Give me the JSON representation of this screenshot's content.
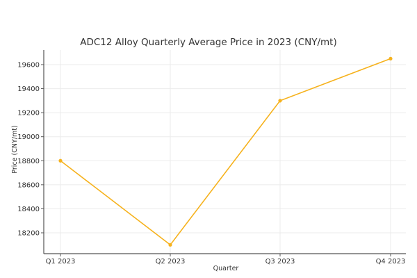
{
  "chart_data": {
    "type": "line",
    "title": "ADC12 Alloy Quarterly Average Price in 2023 (CNY/mt)",
    "xlabel": "Quarter",
    "ylabel": "Price (CNY/mt)",
    "categories": [
      "Q1 2023",
      "Q2 2023",
      "Q3 2023",
      "Q4 2023"
    ],
    "values": [
      18800,
      18100,
      19300,
      19650
    ],
    "series": [
      {
        "name": "ADC12 Alloy",
        "values": [
          18800,
          18100,
          19300,
          19650
        ],
        "color": "#F6B21D"
      }
    ],
    "yticks": [
      18200,
      18400,
      18600,
      18800,
      19000,
      19200,
      19400,
      19600
    ],
    "ylim": [
      18025,
      19735
    ],
    "grid": true,
    "legend": "none"
  },
  "colors": {
    "line": "#F6B21D",
    "grid": "#ebebeb",
    "axis": "#555555"
  }
}
